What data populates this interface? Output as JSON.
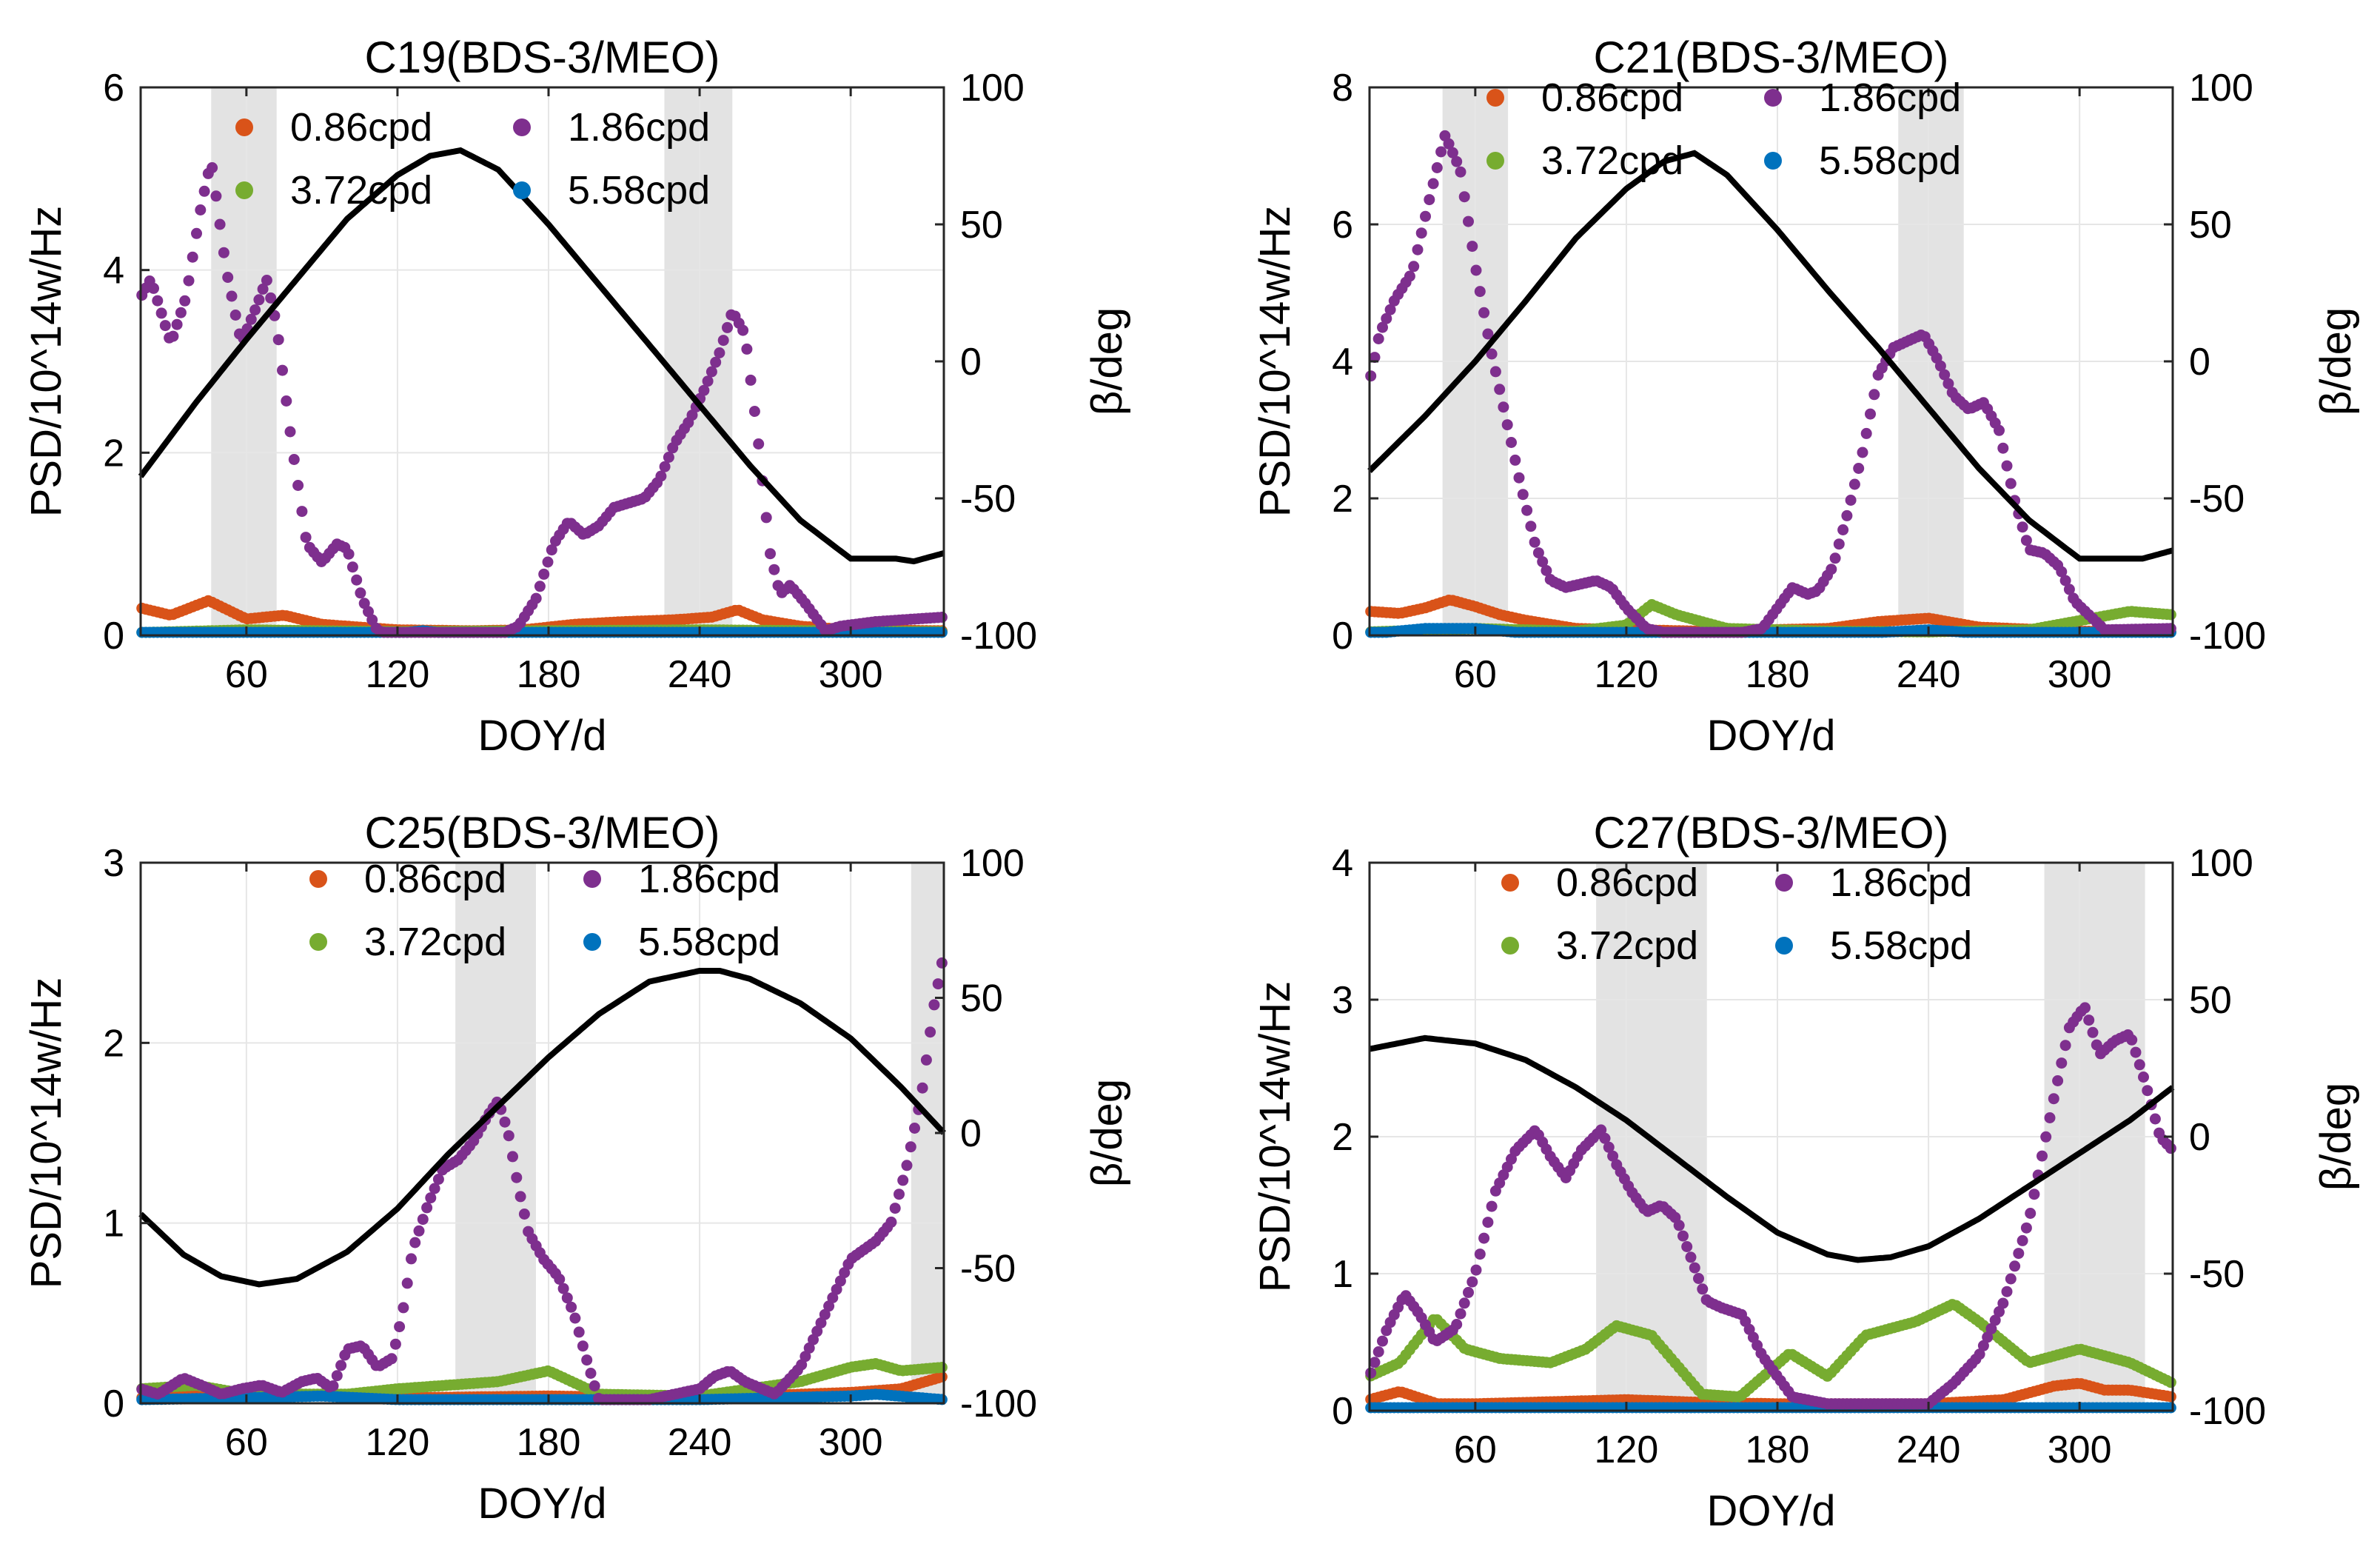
{
  "chart_data": [
    {
      "type": "scatter",
      "title": "C19(BDS-3/MEO)",
      "xlabel": "DOY/d",
      "ylabel": "PSD/10^14w/Hz",
      "ylabel_right": "β/deg",
      "xlim": [
        18,
        337
      ],
      "ylim": [
        0,
        6
      ],
      "ylim_right": [
        -100,
        100
      ],
      "xticks": [
        60,
        120,
        180,
        240,
        300
      ],
      "yticks": [
        0,
        2,
        4,
        6
      ],
      "yticks_right": [
        -100,
        -50,
        0,
        50,
        100
      ],
      "grid": true,
      "legend_position": "top",
      "legend_columns": 2,
      "shaded_regions": [
        [
          46,
          72
        ],
        [
          226,
          253
        ]
      ],
      "series": [
        {
          "name": "0.86cpd",
          "color": "#d95319",
          "x": [
            18,
            30,
            45,
            60,
            75,
            90,
            120,
            150,
            170,
            190,
            210,
            230,
            245,
            255,
            265,
            280,
            300,
            337
          ],
          "values": [
            0.3,
            0.22,
            0.38,
            0.18,
            0.22,
            0.12,
            0.06,
            0.05,
            0.06,
            0.12,
            0.15,
            0.17,
            0.2,
            0.28,
            0.17,
            0.1,
            0.06,
            0.05
          ]
        },
        {
          "name": "1.86cpd",
          "color": "#7e2f8e",
          "x": [
            18,
            22,
            30,
            36,
            42,
            46,
            52,
            58,
            64,
            68,
            72,
            78,
            84,
            90,
            96,
            100,
            106,
            112,
            120,
            140,
            160,
            168,
            175,
            182,
            188,
            194,
            200,
            206,
            212,
            218,
            224,
            230,
            236,
            242,
            248,
            253,
            258,
            263,
            268,
            272,
            276,
            282,
            290,
            296,
            310,
            337
          ],
          "values": [
            3.7,
            3.9,
            3.2,
            3.7,
            4.7,
            5.2,
            4.0,
            3.2,
            3.6,
            3.9,
            3.4,
            2.1,
            1.0,
            0.8,
            1.0,
            0.95,
            0.4,
            0.05,
            0.0,
            0.0,
            0.0,
            0.1,
            0.4,
            1.0,
            1.25,
            1.1,
            1.2,
            1.4,
            1.45,
            1.5,
            1.7,
            2.1,
            2.35,
            2.7,
            3.1,
            3.55,
            3.3,
            2.2,
            0.9,
            0.45,
            0.55,
            0.35,
            0.05,
            0.1,
            0.15,
            0.2
          ]
        },
        {
          "name": "3.72cpd",
          "color": "#77ac30",
          "x": [
            18,
            60,
            120,
            180,
            240,
            337
          ],
          "values": [
            0.03,
            0.06,
            0.04,
            0.05,
            0.06,
            0.04
          ]
        },
        {
          "name": "5.58cpd",
          "color": "#0072bd",
          "x": [
            18,
            60,
            120,
            130,
            140,
            180,
            240,
            337
          ],
          "values": [
            0.02,
            0.02,
            0.02,
            0.05,
            0.02,
            0.02,
            0.02,
            0.02
          ]
        },
        {
          "name": "β",
          "color": "#000000",
          "axis": "right",
          "x": [
            18,
            40,
            60,
            80,
            100,
            120,
            133,
            145,
            160,
            180,
            200,
            220,
            240,
            260,
            280,
            300,
            318,
            325,
            337
          ],
          "values": [
            -42,
            -15,
            8,
            30,
            52,
            68,
            75,
            77,
            70,
            50,
            28,
            6,
            -16,
            -38,
            -58,
            -72,
            -72,
            -73,
            -70
          ]
        }
      ]
    },
    {
      "type": "scatter",
      "title": "C21(BDS-3/MEO)",
      "xlabel": "DOY/d",
      "ylabel": "PSD/10^14w/Hz",
      "ylabel_right": "β/deg",
      "xlim": [
        18,
        337
      ],
      "ylim": [
        0,
        8
      ],
      "ylim_right": [
        -100,
        100
      ],
      "xticks": [
        60,
        120,
        180,
        240,
        300
      ],
      "yticks": [
        0,
        2,
        4,
        6,
        8
      ],
      "yticks_right": [
        -100,
        -50,
        0,
        50,
        100
      ],
      "grid": true,
      "legend_position": "top",
      "legend_columns": 2,
      "shaded_regions": [
        [
          47,
          73
        ],
        [
          228,
          254
        ]
      ],
      "series": [
        {
          "name": "0.86cpd",
          "color": "#d95319",
          "x": [
            18,
            30,
            40,
            50,
            60,
            70,
            80,
            100,
            150,
            200,
            220,
            240,
            260,
            300,
            337
          ],
          "values": [
            0.35,
            0.32,
            0.4,
            0.52,
            0.42,
            0.3,
            0.22,
            0.1,
            0.06,
            0.1,
            0.2,
            0.25,
            0.12,
            0.06,
            0.05
          ]
        },
        {
          "name": "1.86cpd",
          "color": "#7e2f8e",
          "x": [
            18,
            22,
            28,
            35,
            42,
            48,
            54,
            60,
            66,
            72,
            78,
            84,
            90,
            96,
            102,
            108,
            114,
            120,
            128,
            140,
            160,
            174,
            180,
            186,
            192,
            196,
            202,
            208,
            214,
            220,
            226,
            232,
            238,
            244,
            250,
            256,
            262,
            268,
            274,
            280,
            286,
            292,
            298,
            310,
            337
          ],
          "values": [
            3.7,
            4.4,
            4.9,
            5.3,
            6.4,
            7.3,
            6.8,
            5.4,
            4.2,
            3.2,
            2.2,
            1.3,
            0.8,
            0.7,
            0.75,
            0.8,
            0.7,
            0.4,
            0.1,
            0.0,
            0.0,
            0.1,
            0.4,
            0.7,
            0.6,
            0.65,
            1.0,
            1.8,
            2.7,
            3.8,
            4.2,
            4.3,
            4.4,
            4.0,
            3.5,
            3.3,
            3.4,
            3.0,
            2.0,
            1.25,
            1.2,
            1.0,
            0.5,
            0.08,
            0.1
          ]
        },
        {
          "name": "3.72cpd",
          "color": "#77ac30",
          "x": [
            18,
            60,
            100,
            120,
            130,
            140,
            160,
            200,
            240,
            280,
            320,
            337
          ],
          "values": [
            0.05,
            0.1,
            0.06,
            0.15,
            0.45,
            0.3,
            0.1,
            0.06,
            0.05,
            0.08,
            0.35,
            0.3
          ]
        },
        {
          "name": "5.58cpd",
          "color": "#0072bd",
          "x": [
            18,
            40,
            60,
            80,
            120,
            220,
            240,
            260,
            337
          ],
          "values": [
            0.02,
            0.1,
            0.1,
            0.03,
            0.02,
            0.04,
            0.08,
            0.03,
            0.02
          ]
        },
        {
          "name": "β",
          "color": "#000000",
          "axis": "right",
          "x": [
            18,
            40,
            60,
            80,
            100,
            120,
            135,
            147,
            160,
            180,
            200,
            220,
            240,
            260,
            280,
            300,
            318,
            325,
            337
          ],
          "values": [
            -40,
            -20,
            0,
            22,
            45,
            63,
            73,
            76,
            68,
            48,
            26,
            5,
            -17,
            -39,
            -58,
            -72,
            -72,
            -72,
            -69
          ]
        }
      ]
    },
    {
      "type": "scatter",
      "title": "C25(BDS-3/MEO)",
      "xlabel": "DOY/d",
      "ylabel": "PSD/10^14w/Hz",
      "ylabel_right": "β/deg",
      "xlim": [
        18,
        337
      ],
      "ylim": [
        0,
        3
      ],
      "ylim_right": [
        -100,
        100
      ],
      "xticks": [
        60,
        120,
        180,
        240,
        300
      ],
      "yticks": [
        0,
        1,
        2,
        3
      ],
      "yticks_right": [
        -100,
        -50,
        0,
        50,
        100
      ],
      "grid": true,
      "legend_position": "top",
      "legend_columns": 2,
      "shaded_regions": [
        [
          143,
          175
        ],
        [
          324,
          337
        ]
      ],
      "series": [
        {
          "name": "0.86cpd",
          "color": "#d95319",
          "x": [
            18,
            60,
            120,
            180,
            240,
            300,
            320,
            337
          ],
          "values": [
            0.03,
            0.05,
            0.03,
            0.04,
            0.03,
            0.06,
            0.08,
            0.15
          ]
        },
        {
          "name": "1.86cpd",
          "color": "#7e2f8e",
          "x": [
            18,
            25,
            35,
            42,
            50,
            58,
            66,
            74,
            82,
            88,
            94,
            100,
            106,
            112,
            118,
            122,
            126,
            132,
            138,
            144,
            150,
            156,
            160,
            164,
            168,
            172,
            178,
            184,
            190,
            196,
            200,
            220,
            240,
            246,
            252,
            258,
            270,
            280,
            290,
            300,
            310,
            316,
            322,
            328,
            333,
            337
          ],
          "values": [
            0.08,
            0.05,
            0.14,
            0.1,
            0.05,
            0.08,
            0.1,
            0.06,
            0.12,
            0.14,
            0.08,
            0.3,
            0.32,
            0.2,
            0.25,
            0.5,
            0.85,
            1.1,
            1.3,
            1.35,
            1.45,
            1.6,
            1.68,
            1.5,
            1.2,
            0.95,
            0.8,
            0.7,
            0.5,
            0.2,
            0.02,
            0.02,
            0.08,
            0.15,
            0.18,
            0.12,
            0.05,
            0.2,
            0.5,
            0.8,
            0.9,
            1.0,
            1.3,
            1.7,
            2.2,
            2.5
          ]
        },
        {
          "name": "3.72cpd",
          "color": "#77ac30",
          "x": [
            18,
            40,
            60,
            100,
            120,
            140,
            160,
            180,
            200,
            240,
            280,
            300,
            310,
            320,
            337
          ],
          "values": [
            0.08,
            0.1,
            0.05,
            0.05,
            0.08,
            0.1,
            0.12,
            0.18,
            0.05,
            0.04,
            0.12,
            0.2,
            0.22,
            0.18,
            0.2
          ]
        },
        {
          "name": "5.58cpd",
          "color": "#0072bd",
          "x": [
            18,
            60,
            90,
            120,
            180,
            240,
            300,
            310,
            337
          ],
          "values": [
            0.02,
            0.03,
            0.04,
            0.02,
            0.02,
            0.02,
            0.04,
            0.05,
            0.02
          ]
        },
        {
          "name": "β",
          "color": "#000000",
          "axis": "right",
          "x": [
            18,
            35,
            50,
            65,
            80,
            100,
            120,
            140,
            160,
            180,
            200,
            220,
            240,
            248,
            260,
            280,
            300,
            320,
            337
          ],
          "values": [
            -30,
            -45,
            -53,
            -56,
            -54,
            -44,
            -28,
            -8,
            10,
            28,
            44,
            56,
            60,
            60,
            57,
            48,
            35,
            17,
            0
          ]
        }
      ]
    },
    {
      "type": "scatter",
      "title": "C27(BDS-3/MEO)",
      "xlabel": "DOY/d",
      "ylabel": "PSD/10^14w/Hz",
      "ylabel_right": "β/deg",
      "xlim": [
        18,
        337
      ],
      "ylim": [
        0,
        4
      ],
      "ylim_right": [
        -100,
        100
      ],
      "xticks": [
        60,
        120,
        180,
        240,
        300
      ],
      "yticks": [
        0,
        1,
        2,
        3,
        4
      ],
      "yticks_right": [
        -100,
        -50,
        0,
        50,
        100
      ],
      "grid": true,
      "legend_position": "top",
      "legend_columns": 2,
      "shaded_regions": [
        [
          108,
          152
        ],
        [
          286,
          326
        ]
      ],
      "series": [
        {
          "name": "0.86cpd",
          "color": "#d95319",
          "x": [
            18,
            30,
            45,
            60,
            100,
            120,
            150,
            180,
            240,
            270,
            290,
            300,
            310,
            320,
            337
          ],
          "values": [
            0.08,
            0.14,
            0.05,
            0.05,
            0.07,
            0.08,
            0.06,
            0.05,
            0.05,
            0.08,
            0.18,
            0.2,
            0.15,
            0.15,
            0.1
          ]
        },
        {
          "name": "1.86cpd",
          "color": "#7e2f8e",
          "x": [
            18,
            25,
            32,
            38,
            44,
            52,
            60,
            68,
            76,
            84,
            90,
            96,
            102,
            110,
            116,
            122,
            128,
            134,
            140,
            146,
            152,
            158,
            166,
            174,
            186,
            200,
            220,
            240,
            250,
            260,
            270,
            280,
            290,
            296,
            302,
            308,
            314,
            320,
            326,
            332,
            337
          ],
          "values": [
            0.25,
            0.6,
            0.85,
            0.7,
            0.5,
            0.6,
            1.0,
            1.6,
            1.9,
            2.05,
            1.85,
            1.7,
            1.9,
            2.05,
            1.8,
            1.6,
            1.45,
            1.5,
            1.4,
            1.1,
            0.8,
            0.75,
            0.7,
            0.4,
            0.1,
            0.05,
            0.05,
            0.05,
            0.2,
            0.4,
            0.8,
            1.4,
            2.3,
            2.8,
            2.95,
            2.6,
            2.7,
            2.75,
            2.4,
            2.0,
            1.9
          ]
        },
        {
          "name": "3.72cpd",
          "color": "#77ac30",
          "x": [
            18,
            30,
            44,
            56,
            70,
            90,
            104,
            116,
            130,
            150,
            165,
            185,
            200,
            215,
            235,
            250,
            260,
            280,
            300,
            320,
            337
          ],
          "values": [
            0.25,
            0.35,
            0.68,
            0.45,
            0.38,
            0.35,
            0.45,
            0.62,
            0.55,
            0.12,
            0.1,
            0.42,
            0.25,
            0.55,
            0.65,
            0.78,
            0.65,
            0.35,
            0.45,
            0.35,
            0.2
          ]
        },
        {
          "name": "5.58cpd",
          "color": "#0072bd",
          "x": [
            18,
            60,
            120,
            180,
            240,
            300,
            337
          ],
          "values": [
            0.02,
            0.02,
            0.02,
            0.02,
            0.02,
            0.02,
            0.02
          ]
        },
        {
          "name": "β",
          "color": "#000000",
          "axis": "right",
          "x": [
            18,
            40,
            60,
            80,
            100,
            120,
            140,
            160,
            180,
            200,
            212,
            225,
            240,
            260,
            280,
            300,
            320,
            337
          ],
          "values": [
            32,
            36,
            34,
            28,
            18,
            6,
            -8,
            -22,
            -35,
            -43,
            -45,
            -44,
            -40,
            -30,
            -18,
            -6,
            6,
            18
          ]
        }
      ]
    }
  ]
}
